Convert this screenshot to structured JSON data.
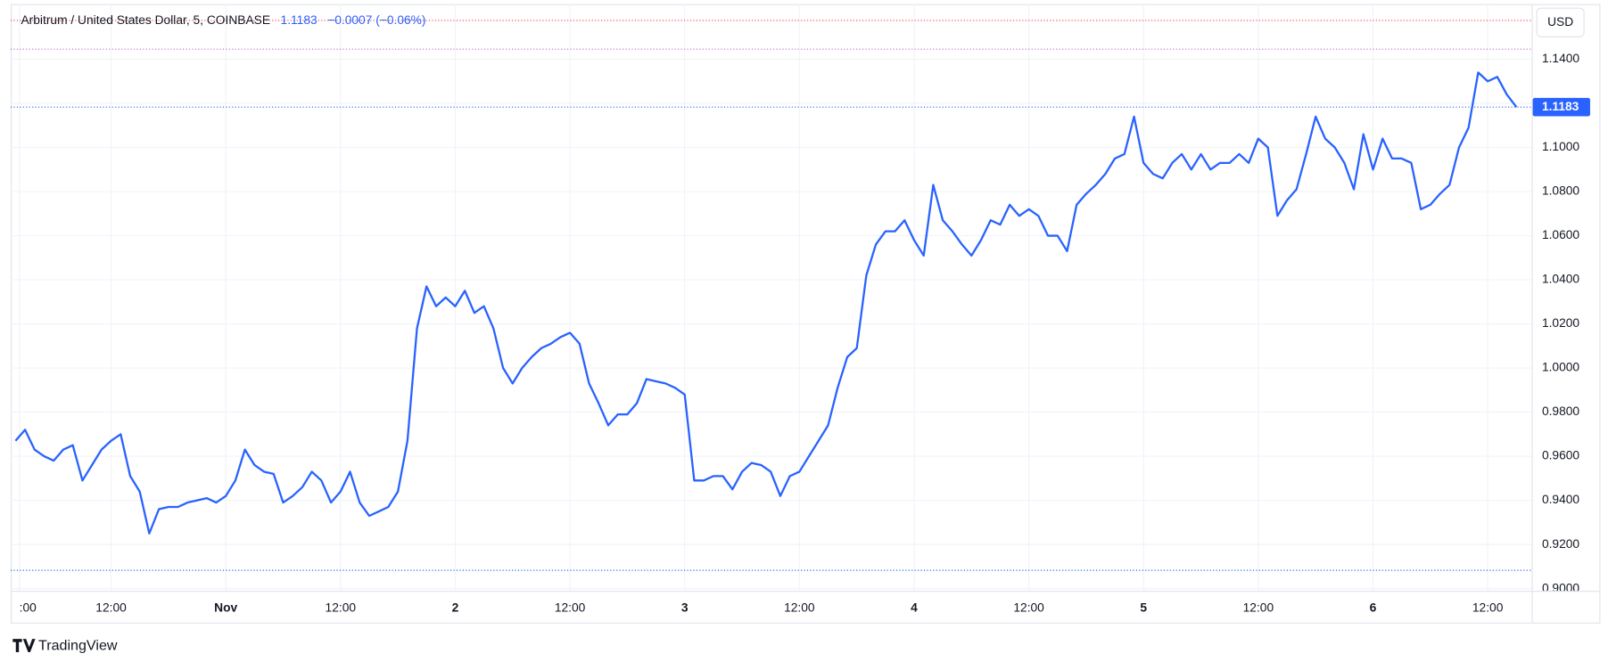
{
  "header": {
    "symbol": "Arbitrum / United States Dollar, 5, COINBASE",
    "change": "−0.0007 (−0.06%)"
  },
  "currency": "USD",
  "logo": "TradingView",
  "chart_data": {
    "type": "line",
    "color": "#2962ff",
    "grid": true,
    "last_price": 1.1183,
    "x": [
      -22,
      -21,
      -20,
      -19,
      -18,
      -17,
      -16,
      -15,
      -14,
      -13,
      -12,
      -11,
      -10,
      -9,
      -8,
      -7,
      -6,
      -5,
      -4,
      -3,
      -2,
      -1,
      0,
      1,
      2,
      3,
      4,
      5,
      6,
      7,
      8,
      9,
      10,
      11,
      12,
      13,
      14,
      15,
      16,
      17,
      18,
      19,
      20,
      21,
      22,
      23,
      24,
      25,
      26,
      27,
      28,
      29,
      30,
      31,
      32,
      33,
      34,
      35,
      36,
      37,
      38,
      39,
      40,
      41,
      42,
      43,
      44,
      45,
      46,
      47,
      48,
      49,
      50,
      51,
      52,
      53,
      54,
      55,
      56,
      57,
      58,
      59,
      60,
      61,
      62,
      63,
      64,
      65,
      66,
      67,
      68,
      69,
      70,
      71,
      72,
      73,
      74,
      75,
      76,
      77,
      78,
      79,
      80,
      81,
      82,
      83,
      84,
      85,
      86,
      87,
      88,
      89,
      90,
      91,
      92,
      93,
      94,
      95,
      96,
      97,
      98,
      99,
      100,
      101,
      102,
      103,
      104,
      105,
      106,
      107,
      108,
      109,
      110,
      111,
      112,
      113,
      114,
      115,
      116,
      117,
      118,
      119,
      120,
      121,
      122,
      123,
      124,
      125,
      126,
      127,
      128,
      129,
      130,
      131,
      132,
      133,
      134,
      135
    ],
    "values": [
      0.967,
      0.972,
      0.963,
      0.96,
      0.958,
      0.963,
      0.965,
      0.949,
      0.956,
      0.963,
      0.967,
      0.97,
      0.951,
      0.944,
      0.925,
      0.936,
      0.937,
      0.937,
      0.939,
      0.94,
      0.941,
      0.939,
      0.942,
      0.949,
      0.963,
      0.956,
      0.953,
      0.952,
      0.939,
      0.942,
      0.946,
      0.953,
      0.949,
      0.939,
      0.944,
      0.953,
      0.939,
      0.933,
      0.935,
      0.937,
      0.944,
      0.967,
      1.018,
      1.037,
      1.028,
      1.032,
      1.028,
      1.035,
      1.025,
      1.028,
      1.018,
      1.0,
      0.993,
      1.0,
      1.005,
      1.009,
      1.011,
      1.014,
      1.016,
      1.011,
      0.993,
      0.984,
      0.974,
      0.979,
      0.979,
      0.984,
      0.995,
      0.994,
      0.993,
      0.991,
      0.988,
      0.949,
      0.949,
      0.951,
      0.951,
      0.945,
      0.953,
      0.957,
      0.956,
      0.953,
      0.942,
      0.951,
      0.953,
      0.96,
      0.967,
      0.974,
      0.991,
      1.005,
      1.009,
      1.042,
      1.056,
      1.062,
      1.062,
      1.067,
      1.058,
      1.051,
      1.083,
      1.067,
      1.062,
      1.056,
      1.051,
      1.058,
      1.067,
      1.065,
      1.074,
      1.069,
      1.072,
      1.069,
      1.06,
      1.06,
      1.053,
      1.074,
      1.079,
      1.083,
      1.088,
      1.095,
      1.097,
      1.114,
      1.093,
      1.088,
      1.086,
      1.093,
      1.097,
      1.09,
      1.097,
      1.09,
      1.093,
      1.093,
      1.097,
      1.093,
      1.104,
      1.1,
      1.069,
      1.076,
      1.081,
      1.097,
      1.114,
      1.104,
      1.1,
      1.093,
      1.081,
      1.106,
      1.09,
      1.104,
      1.095,
      1.095,
      1.093,
      1.072,
      1.074,
      1.079,
      1.083,
      1.1,
      1.109,
      1.134,
      1.13,
      1.132,
      1.124,
      1.1183
    ],
    "xlim": [
      -22.5,
      136.6
    ],
    "xticks": [
      {
        "value": -21.6,
        "label": ":00"
      },
      {
        "value": -12,
        "label": "12:00"
      },
      {
        "value": 0,
        "label": "Nov"
      },
      {
        "value": 12,
        "label": "12:00"
      },
      {
        "value": 24,
        "label": "2"
      },
      {
        "value": 36,
        "label": "12:00"
      },
      {
        "value": 48,
        "label": "3"
      },
      {
        "value": 60,
        "label": "12:00"
      },
      {
        "value": 72,
        "label": "4"
      },
      {
        "value": 84,
        "label": "12:00"
      },
      {
        "value": 96,
        "label": "5"
      },
      {
        "value": 108,
        "label": "12:00"
      },
      {
        "value": 120,
        "label": "6"
      },
      {
        "value": 132,
        "label": "12:00"
      }
    ],
    "ylim": [
      0.899,
      1.165
    ],
    "yticks": [
      {
        "value": 0.9,
        "label": "0.9000"
      },
      {
        "value": 0.92,
        "label": "0.9200"
      },
      {
        "value": 0.94,
        "label": "0.9400"
      },
      {
        "value": 0.96,
        "label": "0.9600"
      },
      {
        "value": 0.98,
        "label": "0.9800"
      },
      {
        "value": 1.0,
        "label": "1.0000"
      },
      {
        "value": 1.02,
        "label": "1.0200"
      },
      {
        "value": 1.04,
        "label": "1.0400"
      },
      {
        "value": 1.06,
        "label": "1.0600"
      },
      {
        "value": 1.08,
        "label": "1.0800"
      },
      {
        "value": 1.1,
        "label": "1.1000"
      },
      {
        "value": 1.12,
        "label": "1.1200"
      },
      {
        "value": 1.14,
        "label": "1.1400"
      }
    ]
  }
}
